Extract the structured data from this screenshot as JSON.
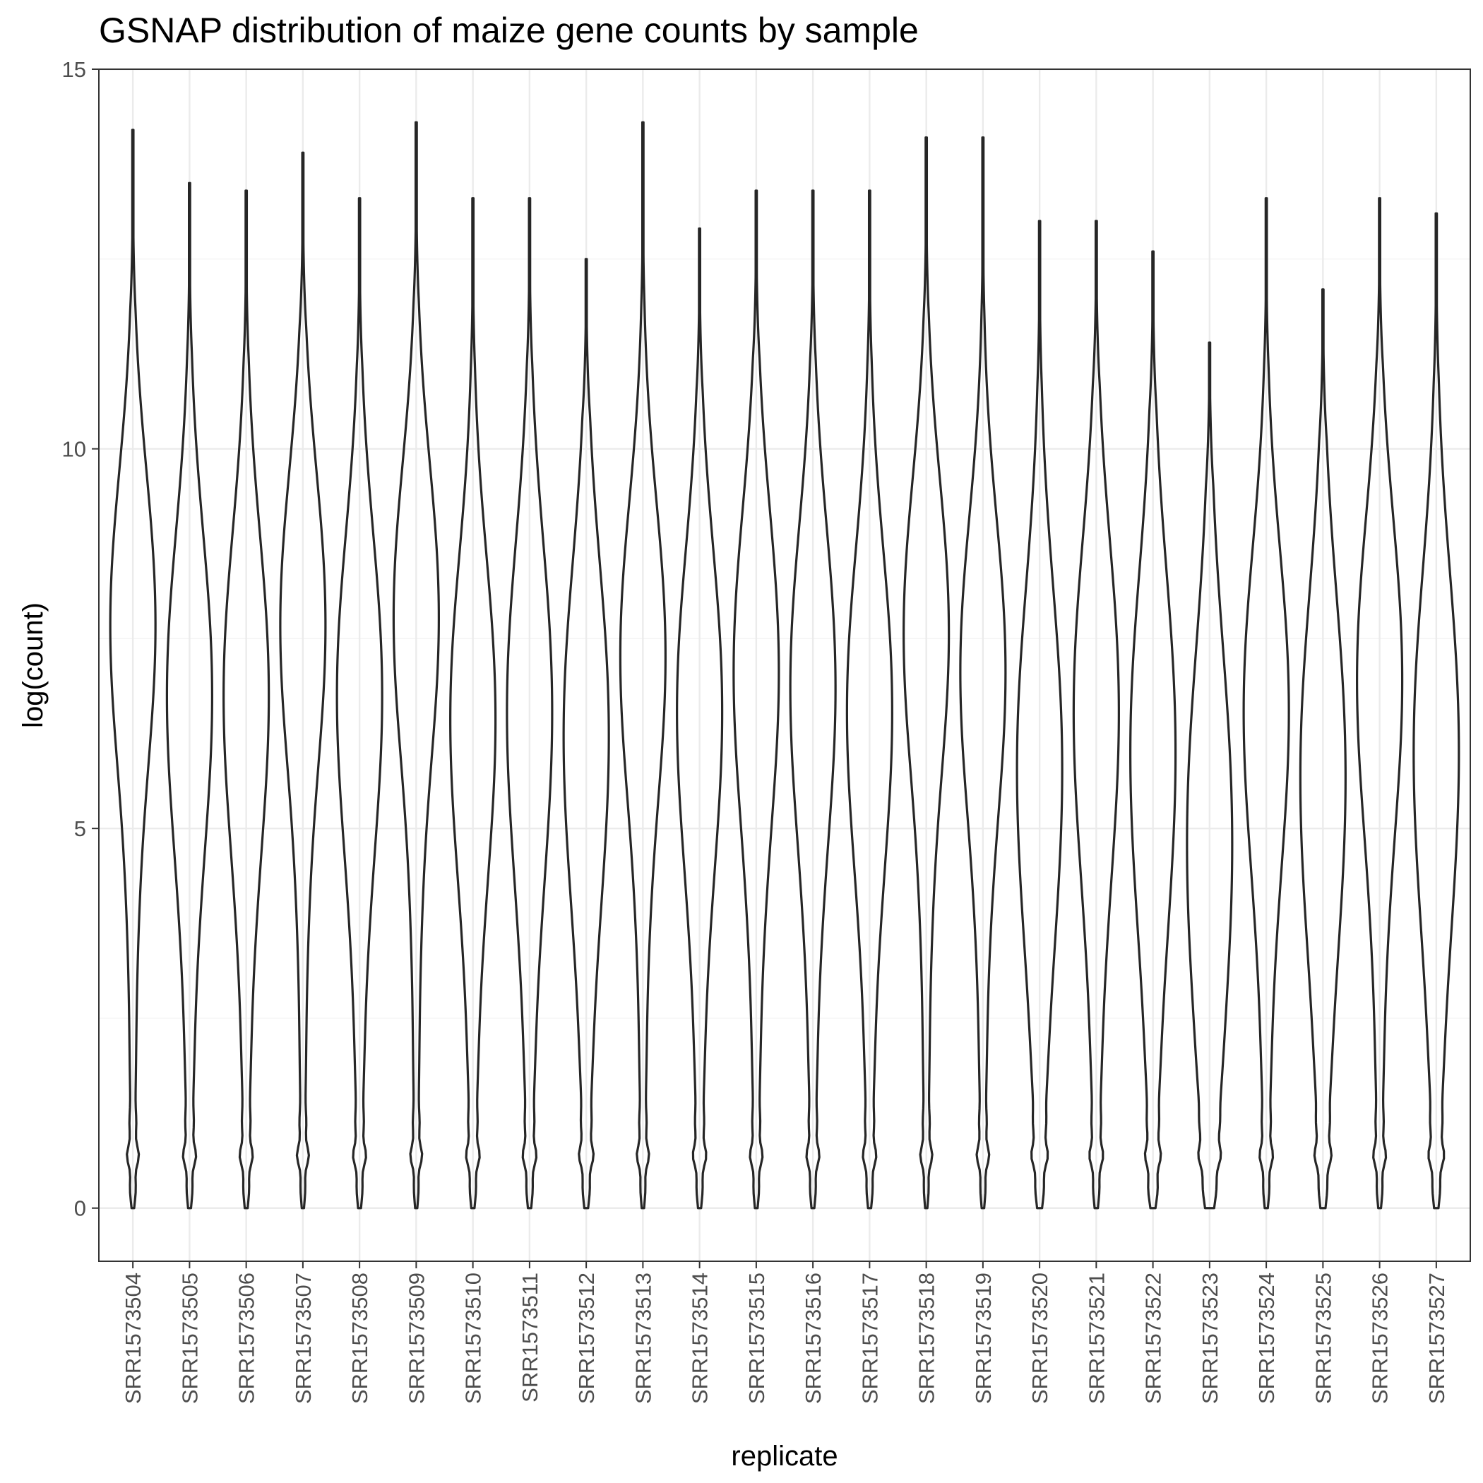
{
  "chart_data": {
    "type": "violin",
    "title": "GSNAP distribution of maize gene counts by sample",
    "xlabel": "replicate",
    "ylabel": "log(count)",
    "ylim": [
      -0.7,
      15
    ],
    "yticks": [
      0,
      5,
      10,
      15
    ],
    "grid": true,
    "categories": [
      "SRR1573504",
      "SRR1573505",
      "SRR1573506",
      "SRR1573507",
      "SRR1573508",
      "SRR1573509",
      "SRR1573510",
      "SRR1573511",
      "SRR1573512",
      "SRR1573513",
      "SRR1573514",
      "SRR1573515",
      "SRR1573516",
      "SRR1573517",
      "SRR1573518",
      "SRR1573519",
      "SRR1573520",
      "SRR1573521",
      "SRR1573522",
      "SRR1573523",
      "SRR1573524",
      "SRR1573525",
      "SRR1573526",
      "SRR1573527"
    ],
    "max_values": [
      14.2,
      13.5,
      13.4,
      13.9,
      13.3,
      14.3,
      13.3,
      13.3,
      12.5,
      14.3,
      12.9,
      13.4,
      13.4,
      13.4,
      14.1,
      14.1,
      13.0,
      13.0,
      12.6,
      11.4,
      13.3,
      12.1,
      13.3,
      13.1
    ],
    "mode_values": [
      7.7,
      6.8,
      6.8,
      7.7,
      6.8,
      7.8,
      6.5,
      6.6,
      6.3,
      7.3,
      6.6,
      7.1,
      6.9,
      6.6,
      7.6,
      7.1,
      5.9,
      6.6,
      6.1,
      5.0,
      6.6,
      5.8,
      7.0,
      6.1
    ],
    "spread_values": [
      2.0,
      2.1,
      2.1,
      2.0,
      2.1,
      2.0,
      2.1,
      2.2,
      2.2,
      2.0,
      2.1,
      2.1,
      2.1,
      2.1,
      2.0,
      2.0,
      2.3,
      2.2,
      2.3,
      2.4,
      2.1,
      2.3,
      2.1,
      2.3
    ],
    "zero_bulge": [
      0.6,
      0.5,
      0.5,
      0.45,
      0.5,
      0.45,
      0.5,
      0.5,
      0.55,
      0.45,
      0.5,
      0.5,
      0.5,
      0.5,
      0.45,
      0.45,
      0.55,
      0.5,
      0.75,
      0.6,
      0.5,
      0.5,
      0.5,
      0.5
    ]
  },
  "colors": {
    "violin_stroke": "#262626",
    "grid_major": "#ebebeb",
    "grid_minor": "#f2f2f2",
    "panel_border": "#333333"
  }
}
